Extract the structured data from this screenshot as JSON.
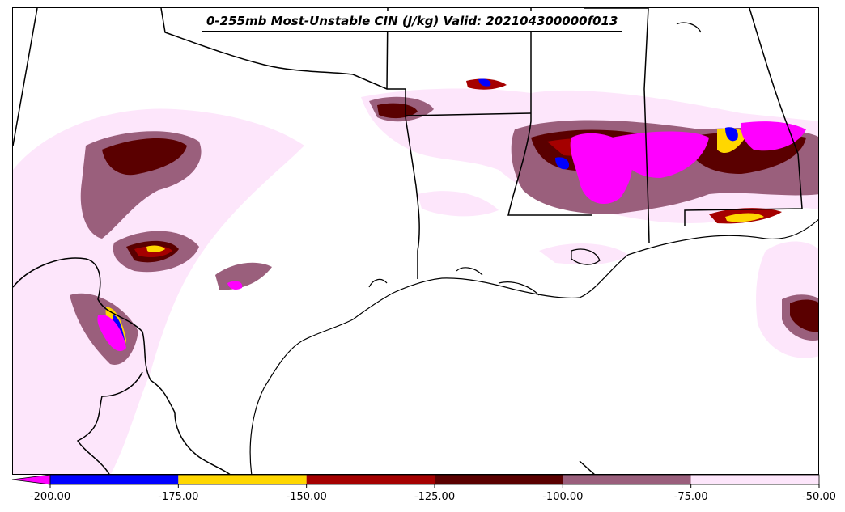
{
  "title": "0-255mb Most-Unstable CIN (J/kg) Valid: 202104300000f013",
  "colorbar": {
    "extend": "min",
    "extend_color": "#ff00ff",
    "bins": [
      {
        "from": -200,
        "to": -175,
        "color": "#0000ff"
      },
      {
        "from": -175,
        "to": -150,
        "color": "#ffd700"
      },
      {
        "from": -150,
        "to": -125,
        "color": "#a50000"
      },
      {
        "from": -125,
        "to": -100,
        "color": "#5a0000"
      },
      {
        "from": -100,
        "to": -75,
        "color": "#9a5f7c"
      },
      {
        "from": -75,
        "to": -50,
        "color": "#fde6fb"
      }
    ],
    "tick_labels": [
      "-200.00",
      "-175.00",
      "-150.00",
      "-125.00",
      "-100.00",
      "-75.00",
      "-50.00"
    ]
  }
}
